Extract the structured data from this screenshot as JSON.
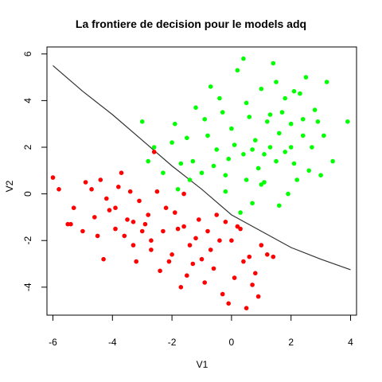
{
  "chart_data": {
    "type": "scatter",
    "title": "La frontiere de decision pour le models adq",
    "xlabel": "V1",
    "ylabel": "V2",
    "xlim": [
      -6.2,
      4.2
    ],
    "ylim": [
      -5.2,
      6.3
    ],
    "xticks": [
      "-6",
      "-4",
      "-2",
      "0",
      "2",
      "4"
    ],
    "yticks": [
      "-4",
      "-2",
      "0",
      "2",
      "4",
      "6"
    ],
    "grid": false,
    "legend": "none",
    "boundary": {
      "color": "#333333",
      "points": [
        [
          -6.0,
          5.5
        ],
        [
          -5.0,
          4.4
        ],
        [
          -4.0,
          3.4
        ],
        [
          -3.0,
          2.3
        ],
        [
          -2.0,
          1.2
        ],
        [
          -1.0,
          0.2
        ],
        [
          0.0,
          -0.9
        ],
        [
          1.0,
          -1.6
        ],
        [
          2.0,
          -2.3
        ],
        [
          3.0,
          -2.8
        ],
        [
          4.0,
          -3.25
        ]
      ]
    },
    "series": [
      {
        "color": "#ff0000",
        "points": [
          [
            -6.0,
            0.7
          ],
          [
            -5.8,
            0.2
          ],
          [
            -5.5,
            -1.3
          ],
          [
            -5.4,
            -1.3
          ],
          [
            -5.0,
            -1.6
          ],
          [
            -4.7,
            0.2
          ],
          [
            -4.5,
            -1.8
          ],
          [
            -4.3,
            -2.8
          ],
          [
            -4.1,
            -0.7
          ],
          [
            -3.9,
            -1.5
          ],
          [
            -3.7,
            0.9
          ],
          [
            -3.5,
            -1.1
          ],
          [
            -3.3,
            -2.2
          ],
          [
            -3.1,
            -0.3
          ],
          [
            -2.9,
            -1.3
          ],
          [
            -2.7,
            -2.0
          ],
          [
            -2.6,
            1.8
          ],
          [
            -2.5,
            0.1
          ],
          [
            -2.4,
            -3.3
          ],
          [
            -2.2,
            -0.6
          ],
          [
            -2.0,
            -2.6
          ],
          [
            -1.8,
            -1.5
          ],
          [
            -1.7,
            -4.0
          ],
          [
            -1.6,
            0.0
          ],
          [
            -1.4,
            -2.2
          ],
          [
            -1.3,
            -3.0
          ],
          [
            -1.1,
            -1.1
          ],
          [
            -0.9,
            -3.8
          ],
          [
            -0.7,
            -2.4
          ],
          [
            -0.5,
            -0.9
          ],
          [
            -0.3,
            -4.3
          ],
          [
            -0.2,
            -1.2
          ],
          [
            0.0,
            -2.0
          ],
          [
            0.1,
            -3.6
          ],
          [
            0.3,
            -1.5
          ],
          [
            0.5,
            -4.9
          ],
          [
            0.6,
            -2.7
          ],
          [
            0.8,
            -3.4
          ],
          [
            1.0,
            -2.2
          ],
          [
            1.4,
            -2.7
          ],
          [
            -5.3,
            -0.6
          ],
          [
            -4.9,
            0.5
          ],
          [
            -4.6,
            -1.0
          ],
          [
            -4.2,
            -0.2
          ],
          [
            -3.8,
            0.3
          ],
          [
            -3.6,
            -1.8
          ],
          [
            -3.4,
            0.1
          ],
          [
            -3.2,
            -2.9
          ],
          [
            -3.0,
            -1.6
          ],
          [
            -2.8,
            -0.9
          ],
          [
            -2.3,
            -1.6
          ],
          [
            -2.1,
            -2.9
          ],
          [
            -1.9,
            -0.8
          ],
          [
            -1.5,
            -3.5
          ],
          [
            -1.2,
            -1.9
          ],
          [
            -1.0,
            -2.8
          ],
          [
            -0.8,
            -1.6
          ],
          [
            -0.6,
            -3.2
          ],
          [
            -0.4,
            -2.0
          ],
          [
            -0.1,
            -4.7
          ],
          [
            0.2,
            -1.4
          ],
          [
            0.4,
            -2.9
          ],
          [
            0.7,
            -3.9
          ],
          [
            0.9,
            -4.4
          ],
          [
            1.2,
            -2.6
          ],
          [
            -4.4,
            0.6
          ],
          [
            -3.9,
            -0.6
          ],
          [
            -3.3,
            -1.2
          ],
          [
            -2.7,
            -2.4
          ],
          [
            -1.6,
            -1.4
          ]
        ]
      },
      {
        "color": "#00ff00",
        "points": [
          [
            -3.0,
            3.1
          ],
          [
            -2.8,
            1.4
          ],
          [
            -2.3,
            0.9
          ],
          [
            -2.0,
            2.2
          ],
          [
            -1.8,
            0.2
          ],
          [
            -1.5,
            2.4
          ],
          [
            -1.3,
            1.4
          ],
          [
            -1.2,
            3.7
          ],
          [
            -1.0,
            0.9
          ],
          [
            -0.8,
            2.5
          ],
          [
            -0.7,
            4.6
          ],
          [
            -0.5,
            1.9
          ],
          [
            -0.3,
            3.5
          ],
          [
            -0.2,
            0.8
          ],
          [
            0.0,
            2.8
          ],
          [
            0.2,
            5.3
          ],
          [
            0.4,
            1.7
          ],
          [
            0.5,
            3.9
          ],
          [
            0.7,
            -0.4
          ],
          [
            0.8,
            2.3
          ],
          [
            1.0,
            4.5
          ],
          [
            1.1,
            0.5
          ],
          [
            1.2,
            3.1
          ],
          [
            1.4,
            5.6
          ],
          [
            1.5,
            1.4
          ],
          [
            1.6,
            2.6
          ],
          [
            1.8,
            4.1
          ],
          [
            1.9,
            0.0
          ],
          [
            2.0,
            3.0
          ],
          [
            2.1,
            1.3
          ],
          [
            2.3,
            4.3
          ],
          [
            2.4,
            2.5
          ],
          [
            2.5,
            5.0
          ],
          [
            2.6,
            1.0
          ],
          [
            2.8,
            3.6
          ],
          [
            3.0,
            0.8
          ],
          [
            3.1,
            2.5
          ],
          [
            3.2,
            4.8
          ],
          [
            3.4,
            1.4
          ],
          [
            3.9,
            3.1
          ],
          [
            -2.6,
            2.0
          ],
          [
            -1.9,
            3.0
          ],
          [
            -1.4,
            0.6
          ],
          [
            -0.9,
            3.2
          ],
          [
            -0.6,
            1.2
          ],
          [
            -0.4,
            4.1
          ],
          [
            0.1,
            2.1
          ],
          [
            0.3,
            -0.8
          ],
          [
            0.6,
            3.3
          ],
          [
            0.9,
            1.1
          ],
          [
            1.3,
            2.0
          ],
          [
            1.7,
            3.5
          ],
          [
            2.2,
            0.6
          ],
          [
            2.7,
            2.0
          ],
          [
            2.9,
            3.1
          ],
          [
            0.4,
            5.8
          ],
          [
            1.0,
            0.4
          ],
          [
            1.5,
            4.8
          ],
          [
            2.0,
            2.0
          ],
          [
            1.1,
            1.7
          ],
          [
            -0.1,
            1.5
          ],
          [
            0.7,
            1.9
          ],
          [
            1.3,
            3.4
          ],
          [
            1.8,
            1.8
          ],
          [
            2.4,
            3.2
          ],
          [
            -1.7,
            1.3
          ],
          [
            -0.2,
            0.1
          ],
          [
            0.5,
            0.6
          ],
          [
            1.6,
            -0.5
          ],
          [
            2.1,
            4.4
          ]
        ]
      }
    ]
  }
}
